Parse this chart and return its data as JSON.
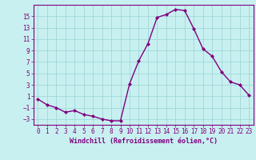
{
  "x": [
    0,
    1,
    2,
    3,
    4,
    5,
    6,
    7,
    8,
    9,
    10,
    11,
    12,
    13,
    14,
    15,
    16,
    17,
    18,
    19,
    20,
    21,
    22,
    23
  ],
  "y": [
    0.5,
    -0.5,
    -1.0,
    -1.8,
    -1.5,
    -2.2,
    -2.5,
    -3.0,
    -3.3,
    -3.3,
    3.2,
    7.2,
    10.2,
    14.8,
    15.3,
    16.2,
    16.0,
    12.8,
    9.3,
    8.0,
    5.3,
    3.5,
    3.0,
    1.2
  ],
  "line_color": "#800080",
  "marker": "D",
  "marker_size": 2.0,
  "bg_color": "#c8f0f0",
  "grid_color": "#a0d8d8",
  "xlabel": "Windchill (Refroidissement éolien,°C)",
  "ylim": [
    -4,
    17
  ],
  "xlim": [
    -0.5,
    23.5
  ],
  "yticks": [
    -3,
    -1,
    1,
    3,
    5,
    7,
    9,
    11,
    13,
    15
  ],
  "xticks": [
    0,
    1,
    2,
    3,
    4,
    5,
    6,
    7,
    8,
    9,
    10,
    11,
    12,
    13,
    14,
    15,
    16,
    17,
    18,
    19,
    20,
    21,
    22,
    23
  ],
  "xlabel_fontsize": 6.0,
  "tick_fontsize": 5.5,
  "line_width": 1.0
}
